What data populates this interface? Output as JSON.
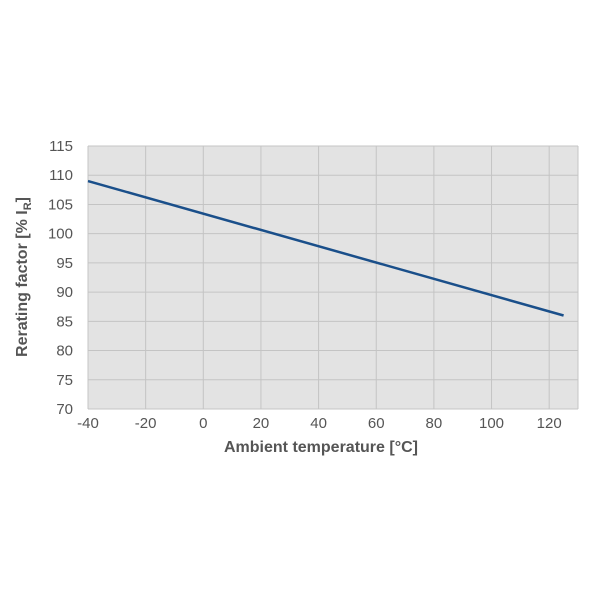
{
  "chart_data": {
    "type": "line",
    "title": "",
    "xlabel": "Ambient temperature [°C]",
    "ylabel": "Rerating factor [% I",
    "ylabel_subscript": "R",
    "ylabel_suffix": "]",
    "xlim": [
      -40,
      130
    ],
    "ylim": [
      70,
      115
    ],
    "x_ticks": [
      -40,
      -20,
      0,
      20,
      40,
      60,
      80,
      100,
      120
    ],
    "y_ticks": [
      70,
      75,
      80,
      85,
      90,
      95,
      100,
      105,
      110,
      115
    ],
    "grid": true,
    "series": [
      {
        "x": [
          -40,
          125
        ],
        "y": [
          109,
          86
        ]
      }
    ],
    "colors": {
      "line": "#1a4f8a",
      "plot_bg": "#e3e3e3",
      "grid": "#c4c4c4",
      "text": "#555555"
    }
  }
}
